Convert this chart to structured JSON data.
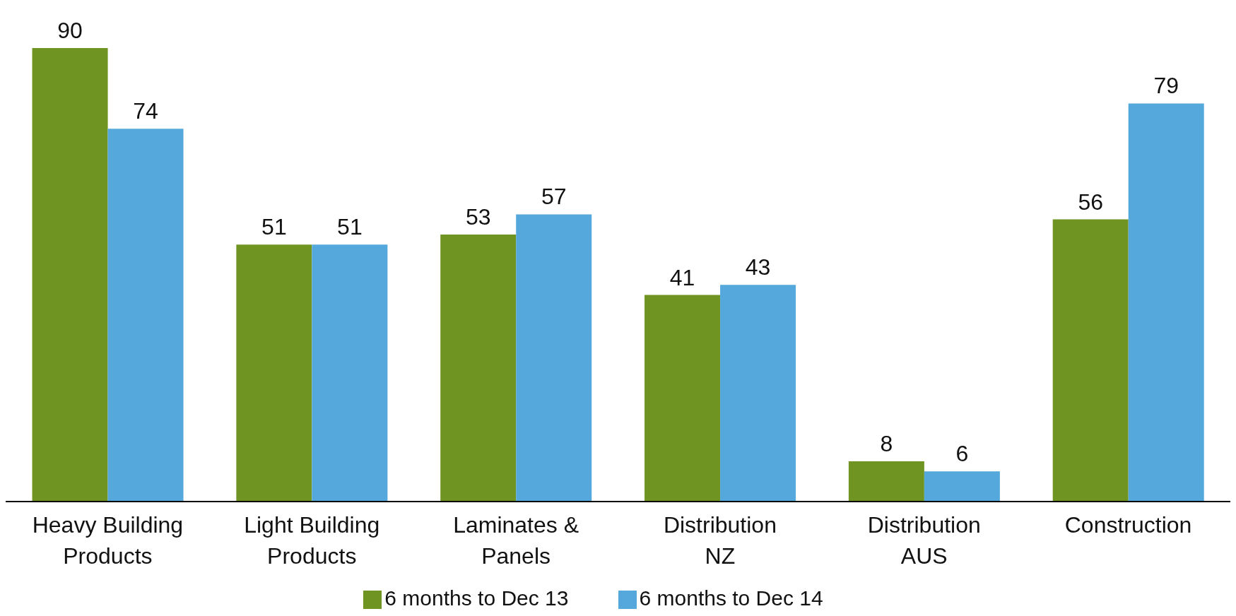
{
  "chart_data": {
    "type": "bar",
    "categories": [
      "Heavy Building Products",
      "Light Building Products",
      "Laminates & Panels",
      "Distribution NZ",
      "Distribution AUS",
      "Construction"
    ],
    "series": [
      {
        "name": "6 months to Dec 13",
        "color": "#6f9422",
        "values": [
          90,
          51,
          53,
          41,
          8,
          56
        ]
      },
      {
        "name": "6 months to Dec 14",
        "color": "#55a8dc",
        "values": [
          74,
          51,
          57,
          43,
          6,
          79
        ]
      }
    ],
    "data_labels": true,
    "legend": "bottom",
    "grid": false
  }
}
